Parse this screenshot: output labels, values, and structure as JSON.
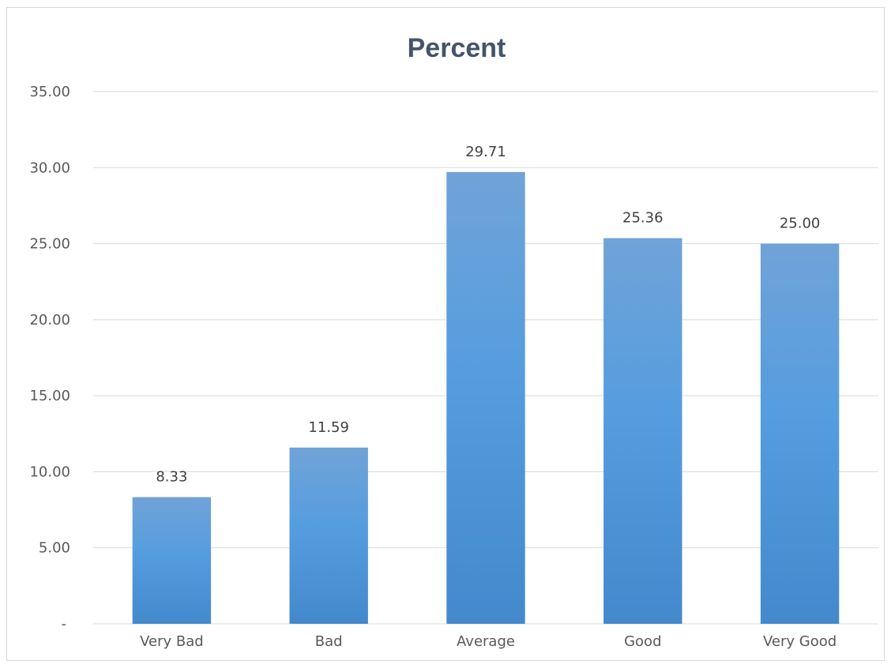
{
  "chart_data": {
    "type": "bar",
    "title": "Percent",
    "categories": [
      "Very Bad",
      "Bad",
      "Average",
      "Good",
      "Very Good"
    ],
    "values": [
      8.33,
      11.59,
      29.71,
      25.36,
      25.0
    ],
    "data_labels": [
      "8.33",
      "11.59",
      "29.71",
      "25.36",
      "25.00"
    ],
    "ylim": [
      0,
      35
    ],
    "yticks": [
      0,
      5,
      10,
      15,
      20,
      25,
      30,
      35
    ],
    "ytick_labels": [
      "-",
      "5.00",
      "10.00",
      "15.00",
      "20.00",
      "25.00",
      "30.00",
      "35.00"
    ],
    "grid": true,
    "legend": "none",
    "bar_color_top": "#70a3d8",
    "bar_color_mid": "#559ddf",
    "bar_color_bottom": "#4389cc"
  }
}
